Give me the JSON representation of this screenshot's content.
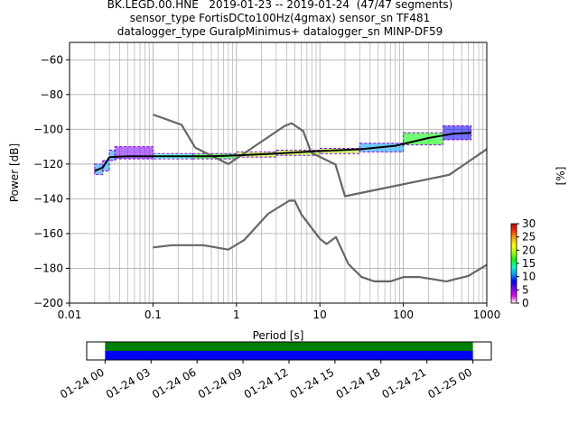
{
  "title_lines": [
    "BK.LEGD.00.HNE   2019-01-23 -- 2019-01-24  (47/47 segments)",
    "sensor_type FortisDCto100Hz(4gmax) sensor_sn TF481",
    "datalogger_type GuralpMinimus+ datalogger_sn MINP-DF59"
  ],
  "chart_data": [
    {
      "type": "heatmap",
      "xlabel": "Period [s]",
      "ylabel": "Power [dB]",
      "xscale": "log",
      "xlim": [
        0.01,
        1000
      ],
      "ylim": [
        -200,
        -50
      ],
      "xticks": [
        {
          "value": 0.01,
          "label": "0.01"
        },
        {
          "value": 0.1,
          "label": "0.1"
        },
        {
          "value": 1,
          "label": "1"
        },
        {
          "value": 10,
          "label": "10"
        },
        {
          "value": 100,
          "label": "100"
        },
        {
          "value": 1000,
          "label": "1000"
        }
      ],
      "yticks": [
        -60,
        -80,
        -100,
        -120,
        -140,
        -160,
        -180,
        -200
      ],
      "grid": true,
      "colorbar": {
        "label": "[%]",
        "ticks": [
          0,
          5,
          10,
          15,
          20,
          25,
          30
        ],
        "range": [
          0,
          30
        ],
        "colors": [
          "#ffffff",
          "#ee00ee",
          "#7a00ff",
          "#0000ff",
          "#00a0ff",
          "#00ffcc",
          "#00ff00",
          "#aaff00",
          "#ffff00",
          "#ffaa00",
          "#ff3300",
          "#cc0000"
        ]
      },
      "series": [
        {
          "name": "",
          "style": "noise_model",
          "color": "#666666",
          "points": [
            [
              0.1,
              -91.5
            ],
            [
              0.22,
              -97.4
            ],
            [
              0.32,
              -110.5
            ],
            [
              0.8,
              -120
            ],
            [
              3.8,
              -98
            ],
            [
              4.6,
              -96.5
            ],
            [
              6.3,
              -101
            ],
            [
              7.9,
              -113.5
            ],
            [
              15.4,
              -120.3
            ],
            [
              20,
              -138.5
            ],
            [
              354.8,
              -126.2
            ],
            [
              1000,
              -111.4
            ]
          ]
        },
        {
          "name": "",
          "style": "noise_model",
          "color": "#666666",
          "points": [
            [
              0.1,
              -168
            ],
            [
              0.17,
              -166.7
            ],
            [
              0.4,
              -166.7
            ],
            [
              0.8,
              -169.2
            ],
            [
              1.24,
              -163.7
            ],
            [
              2.4,
              -148.6
            ],
            [
              4.3,
              -141.1
            ],
            [
              5,
              -141.1
            ],
            [
              6,
              -149
            ],
            [
              10,
              -163
            ],
            [
              12,
              -166
            ],
            [
              15.6,
              -162
            ],
            [
              21.9,
              -177.5
            ],
            [
              31.6,
              -185
            ],
            [
              45,
              -187.5
            ],
            [
              70,
              -187.5
            ],
            [
              101,
              -185
            ],
            [
              154,
              -185
            ],
            [
              328,
              -187.5
            ],
            [
              600,
              -184.4
            ],
            [
              1000,
              -178
            ]
          ]
        },
        {
          "name": "",
          "style": "mean",
          "color": "#000000",
          "points": [
            [
              0.02,
              -124
            ],
            [
              0.025,
              -122
            ],
            [
              0.03,
              -116
            ],
            [
              0.05,
              -115.5
            ],
            [
              0.1,
              -115.5
            ],
            [
              0.5,
              -115.5
            ],
            [
              1,
              -115
            ],
            [
              3,
              -114
            ],
            [
              10,
              -112.5
            ],
            [
              30,
              -111.5
            ],
            [
              80,
              -109.5
            ],
            [
              200,
              -105
            ],
            [
              400,
              -102.5
            ],
            [
              650,
              -102
            ]
          ]
        }
      ],
      "heatmap_cells": [
        {
          "x": [
            0.02,
            0.025
          ],
          "y": [
            -126,
            -120
          ],
          "level": 12
        },
        {
          "x": [
            0.025,
            0.03
          ],
          "y": [
            -124,
            -118
          ],
          "level": 12
        },
        {
          "x": [
            0.03,
            0.035
          ],
          "y": [
            -118,
            -112
          ],
          "level": 10
        },
        {
          "x": [
            0.035,
            0.1
          ],
          "y": [
            -117,
            -110
          ],
          "level": 6
        },
        {
          "x": [
            0.1,
            0.3
          ],
          "y": [
            -117,
            -114
          ],
          "level": 14
        },
        {
          "x": [
            0.3,
            1
          ],
          "y": [
            -117,
            -114
          ],
          "level": 16
        },
        {
          "x": [
            1,
            3
          ],
          "y": [
            -116,
            -113
          ],
          "level": 18
        },
        {
          "x": [
            3,
            10
          ],
          "y": [
            -115,
            -112
          ],
          "level": 20
        },
        {
          "x": [
            10,
            30
          ],
          "y": [
            -114,
            -111
          ],
          "level": 18
        },
        {
          "x": [
            30,
            100
          ],
          "y": [
            -113,
            -108
          ],
          "level": 12
        },
        {
          "x": [
            100,
            300
          ],
          "y": [
            -109,
            -102
          ],
          "level": 15
        },
        {
          "x": [
            300,
            650
          ],
          "y": [
            -106,
            -98
          ],
          "level": 9
        }
      ]
    },
    {
      "type": "bar",
      "role": "data_availability_timeline",
      "x_tick_labels": [
        "01-24 00",
        "01-24 03",
        "01-24 06",
        "01-24 09",
        "01-24 12",
        "01-24 15",
        "01-24 18",
        "01-24 21",
        "01-25 00"
      ],
      "x_tick_hours": [
        0,
        3,
        6,
        9,
        12,
        15,
        18,
        21,
        24
      ],
      "xlim_hours": [
        -1.2,
        25.2
      ],
      "bars": [
        {
          "name": "",
          "color": "#008000",
          "start_hour": 0,
          "end_hour": 24
        },
        {
          "name": "",
          "color": "#0000ff",
          "start_hour": 0,
          "end_hour": 24
        }
      ]
    }
  ]
}
